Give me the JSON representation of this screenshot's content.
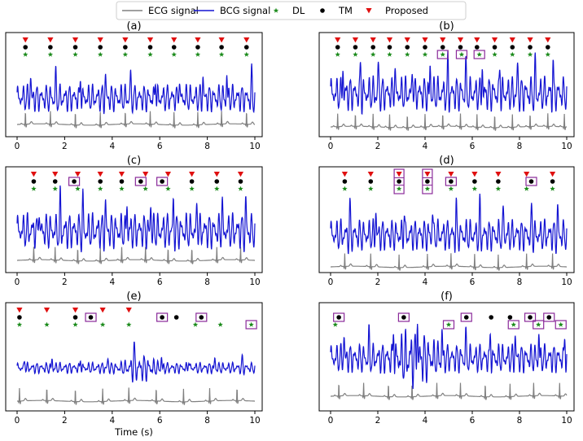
{
  "legend": {
    "entries": [
      {
        "label": "ECG signal",
        "color": "#808080",
        "marker": "line"
      },
      {
        "label": "BCG signal",
        "color": "#1414d2",
        "marker": "line"
      },
      {
        "label": "DL",
        "color": "#1a8a1a",
        "marker": "star"
      },
      {
        "label": "TM",
        "color": "#000000",
        "marker": "dot"
      },
      {
        "label": "Proposed",
        "color": "#e01010",
        "marker": "triangle-down"
      }
    ],
    "placement": "top-center"
  },
  "chart_data": [
    {
      "type": "line",
      "title": "(a)",
      "xlabel": "",
      "xlim": [
        0,
        10
      ],
      "xticks": [
        0,
        2,
        4,
        6,
        8,
        10
      ],
      "ecg_beats": [
        0.35,
        1.4,
        2.45,
        3.5,
        4.55,
        5.6,
        6.6,
        7.6,
        8.6,
        9.65
      ],
      "bcg_amplitude": 1.0,
      "bcg_burst": null,
      "markers": {
        "proposed": [
          0.35,
          1.4,
          2.45,
          3.5,
          4.55,
          5.6,
          6.6,
          7.6,
          8.6,
          9.65
        ],
        "tm": [
          0.35,
          1.4,
          2.45,
          3.5,
          4.55,
          5.6,
          6.6,
          7.6,
          8.6,
          9.65
        ],
        "dl": [
          0.35,
          1.4,
          2.45,
          3.5,
          4.55,
          5.6,
          6.6,
          7.6,
          8.6,
          9.65
        ]
      },
      "boxes": []
    },
    {
      "type": "line",
      "title": "(b)",
      "xlabel": "",
      "xlim": [
        0,
        10
      ],
      "xticks": [
        0,
        2,
        4,
        6,
        8,
        10
      ],
      "ecg_beats": [
        0.3,
        1.05,
        1.8,
        2.5,
        3.25,
        4.0,
        4.75,
        5.5,
        6.2,
        6.95,
        7.7,
        8.45,
        9.2,
        9.9
      ],
      "bcg_amplitude": 1.0,
      "bcg_burst": null,
      "markers": {
        "proposed": [
          0.3,
          1.05,
          1.8,
          2.5,
          3.25,
          4.0,
          4.75,
          5.5,
          6.2,
          6.95,
          7.7,
          8.45,
          9.2
        ],
        "tm": [
          0.3,
          1.05,
          1.8,
          2.5,
          3.25,
          4.0,
          4.75,
          5.5,
          6.2,
          6.95,
          7.7,
          8.45,
          9.2
        ],
        "dl": [
          0.3,
          1.05,
          1.8,
          2.5,
          3.25,
          4.0,
          4.75,
          5.55,
          6.3,
          6.95,
          7.7,
          8.45,
          9.2
        ]
      },
      "boxes": [
        {
          "x": 4.75,
          "row": "dl"
        },
        {
          "x": 5.55,
          "row": "dl"
        },
        {
          "x": 6.3,
          "row": "dl"
        }
      ]
    },
    {
      "type": "line",
      "title": "(c)",
      "xlabel": "",
      "xlim": [
        0,
        10
      ],
      "xticks": [
        0,
        2,
        4,
        6,
        8,
        10
      ],
      "ecg_beats": [
        0.7,
        1.6,
        2.55,
        3.5,
        4.4,
        5.4,
        6.35,
        7.35,
        8.4,
        9.4
      ],
      "bcg_amplitude": 1.0,
      "bcg_burst": null,
      "markers": {
        "proposed": [
          0.7,
          1.6,
          2.55,
          3.5,
          4.4,
          5.4,
          6.35,
          7.35,
          8.4,
          9.4
        ],
        "tm": [
          0.7,
          1.6,
          2.4,
          3.5,
          4.4,
          5.2,
          6.1,
          7.35,
          8.4,
          9.4
        ],
        "dl": [
          0.7,
          1.6,
          2.55,
          3.5,
          4.4,
          5.4,
          6.35,
          7.35,
          8.4,
          9.4
        ]
      },
      "boxes": [
        {
          "x": 2.4,
          "row": "tm"
        },
        {
          "x": 5.2,
          "row": "tm"
        },
        {
          "x": 6.1,
          "row": "tm"
        }
      ]
    },
    {
      "type": "line",
      "title": "(d)",
      "xlabel": "",
      "xlim": [
        0,
        10
      ],
      "xticks": [
        0,
        2,
        4,
        6,
        8,
        10
      ],
      "ecg_beats": [
        0.6,
        1.7,
        2.9,
        4.1,
        5.1,
        6.1,
        7.1,
        8.3,
        9.4
      ],
      "bcg_amplitude": 0.85,
      "bcg_burst": null,
      "markers": {
        "proposed": [
          0.6,
          1.7,
          2.9,
          4.1,
          5.1,
          6.1,
          7.1,
          8.3,
          9.4
        ],
        "tm": [
          0.6,
          1.7,
          2.9,
          4.1,
          5.1,
          6.1,
          7.1,
          8.5,
          9.4
        ],
        "dl": [
          0.6,
          1.7,
          2.9,
          4.1,
          5.1,
          6.1,
          7.1,
          8.3,
          9.4
        ]
      },
      "boxes": [
        {
          "x": 2.9,
          "row": "stack"
        },
        {
          "x": 4.1,
          "row": "stack"
        },
        {
          "x": 5.1,
          "row": "tm"
        },
        {
          "x": 8.5,
          "row": "tm"
        }
      ]
    },
    {
      "type": "line",
      "title": "(e)",
      "xlabel": "Time (s)",
      "xlim": [
        0,
        10
      ],
      "xticks": [
        0,
        2,
        4,
        6,
        8,
        10
      ],
      "ecg_beats": [
        0.1,
        1.25,
        2.45,
        3.6,
        4.7,
        5.85,
        7.0,
        8.1,
        9.25
      ],
      "bcg_amplitude": 0.6,
      "bcg_burst": [
        4.4,
        6.0
      ],
      "markers": {
        "proposed": [
          0.1,
          1.25,
          2.45,
          3.6,
          4.7
        ],
        "tm": [
          0.1,
          2.45,
          3.1,
          6.1,
          6.7,
          7.75
        ],
        "dl": [
          0.1,
          1.25,
          2.45,
          3.6,
          4.7,
          7.5,
          8.55,
          9.85
        ]
      },
      "boxes": [
        {
          "x": 3.1,
          "row": "tm"
        },
        {
          "x": 6.1,
          "row": "tm"
        },
        {
          "x": 7.75,
          "row": "tm"
        },
        {
          "x": 9.85,
          "row": "dl"
        }
      ]
    },
    {
      "type": "line",
      "title": "(f)",
      "xlabel": "",
      "xlim": [
        0,
        10
      ],
      "xticks": [
        0,
        2,
        4,
        6,
        8,
        10
      ],
      "ecg_beats": [
        0.35,
        1.4,
        2.45,
        3.45,
        4.5,
        5.5,
        6.55,
        7.6,
        8.6,
        9.7
      ],
      "bcg_amplitude": 0.75,
      "bcg_burst": [
        2.4,
        4.6
      ],
      "markers": {
        "proposed": [],
        "tm": [
          0.35,
          3.1,
          5.75,
          6.8,
          7.6,
          8.45,
          9.25
        ],
        "dl": [
          0.2,
          5.0,
          7.75,
          8.8,
          9.75
        ]
      },
      "boxes": [
        {
          "x": 0.35,
          "row": "tm"
        },
        {
          "x": 3.1,
          "row": "tm"
        },
        {
          "x": 5.75,
          "row": "tm"
        },
        {
          "x": 8.45,
          "row": "tm"
        },
        {
          "x": 9.25,
          "row": "tm"
        },
        {
          "x": 5.0,
          "row": "dl"
        },
        {
          "x": 7.75,
          "row": "dl"
        },
        {
          "x": 8.8,
          "row": "dl"
        },
        {
          "x": 9.75,
          "row": "dl"
        }
      ]
    }
  ]
}
